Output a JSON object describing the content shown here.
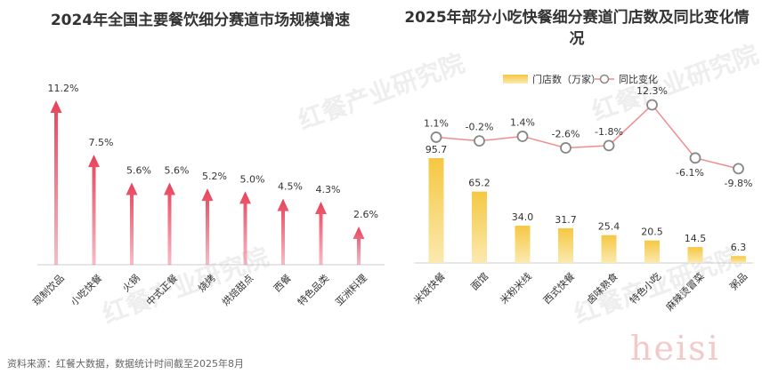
{
  "watermark": "红餐产业研究院",
  "signature": "heisi",
  "source": "资料来源：红餐大数据，数据统计时间截至2025年8月",
  "colors": {
    "arrow": "#e8415a",
    "bar_top": "#f5c842",
    "bar_bottom": "#fbe9b0",
    "line": "#f28c8c",
    "marker": "#888888"
  },
  "chart_data": [
    {
      "type": "bar",
      "title": "2024年全国主要餐饮细分赛道市场规模增速",
      "categories": [
        "现制饮品",
        "小吃快餐",
        "火锅",
        "中式正餐",
        "烧烤",
        "烘焙甜点",
        "西餐",
        "特色品类",
        "亚洲料理"
      ],
      "values": [
        11.2,
        7.5,
        5.6,
        5.6,
        5.2,
        5.0,
        4.5,
        4.3,
        2.6
      ],
      "value_labels": [
        "11.2%",
        "7.5%",
        "5.6%",
        "5.6%",
        "5.2%",
        "5.0%",
        "4.5%",
        "4.3%",
        "2.6%"
      ],
      "ylim": [
        0,
        12
      ]
    },
    {
      "type": "bar",
      "title": "2025年部分小吃快餐细分赛道门店数及同比变化情况",
      "categories": [
        "米饭快餐",
        "面馆",
        "米粉米线",
        "西式快餐",
        "卤味熟食",
        "特色小吃",
        "麻辣烫冒菜",
        "粥品"
      ],
      "series": [
        {
          "name": "门店数（万家）",
          "type": "bar",
          "values": [
            95.7,
            65.2,
            34.0,
            31.7,
            25.4,
            20.5,
            14.5,
            6.3
          ],
          "value_labels": [
            "95.7",
            "65.2",
            "34.0",
            "31.7",
            "25.4",
            "20.5",
            "14.5",
            "6.3"
          ]
        },
        {
          "name": "同比变化",
          "type": "line",
          "values": [
            1.1,
            -0.2,
            1.4,
            -2.6,
            -1.8,
            12.3,
            -6.1,
            -9.8
          ],
          "value_labels": [
            "1.1%",
            "-0.2%",
            "1.4%",
            "-2.6%",
            "-1.8%",
            "12.3%",
            "-6.1%",
            "-9.8%"
          ]
        }
      ],
      "legend": "top"
    }
  ]
}
